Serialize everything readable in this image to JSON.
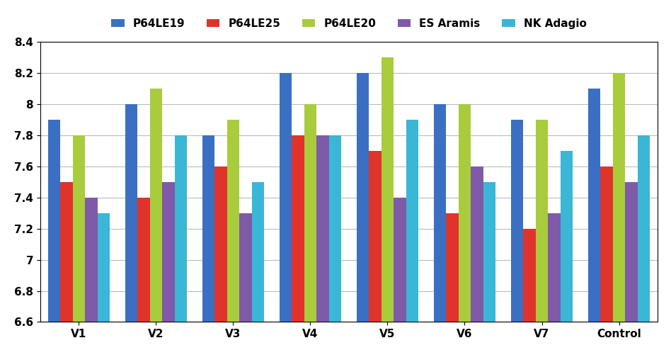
{
  "chart_data": {
    "type": "bar",
    "categories": [
      "V1",
      "V2",
      "V3",
      "V4",
      "V5",
      "V6",
      "V7",
      "Control"
    ],
    "series": [
      {
        "name": "P64LE19",
        "color": "#3a6fc4",
        "values": [
          7.9,
          8.0,
          7.8,
          8.2,
          8.2,
          8.0,
          7.9,
          8.1
        ]
      },
      {
        "name": "P64LE25",
        "color": "#e0332b",
        "values": [
          7.5,
          7.4,
          7.6,
          7.8,
          7.7,
          7.3,
          7.2,
          7.6
        ]
      },
      {
        "name": "P64LE20",
        "color": "#a8cc3c",
        "values": [
          7.8,
          8.1,
          7.9,
          8.0,
          8.3,
          8.0,
          7.9,
          8.2
        ]
      },
      {
        "name": "ES Aramis",
        "color": "#7e5aa8",
        "values": [
          7.4,
          7.5,
          7.3,
          7.8,
          7.4,
          7.6,
          7.3,
          7.5
        ]
      },
      {
        "name": "NK Adagio",
        "color": "#3ab6d6",
        "values": [
          7.3,
          7.8,
          7.5,
          7.8,
          7.9,
          7.5,
          7.7,
          7.8
        ]
      }
    ],
    "ylim": [
      6.6,
      8.4
    ],
    "yticks": [
      6.6,
      6.8,
      7,
      7.2,
      7.4,
      7.6,
      7.8,
      8,
      8.2,
      8.4
    ],
    "grid": true,
    "legend": "upper center"
  }
}
